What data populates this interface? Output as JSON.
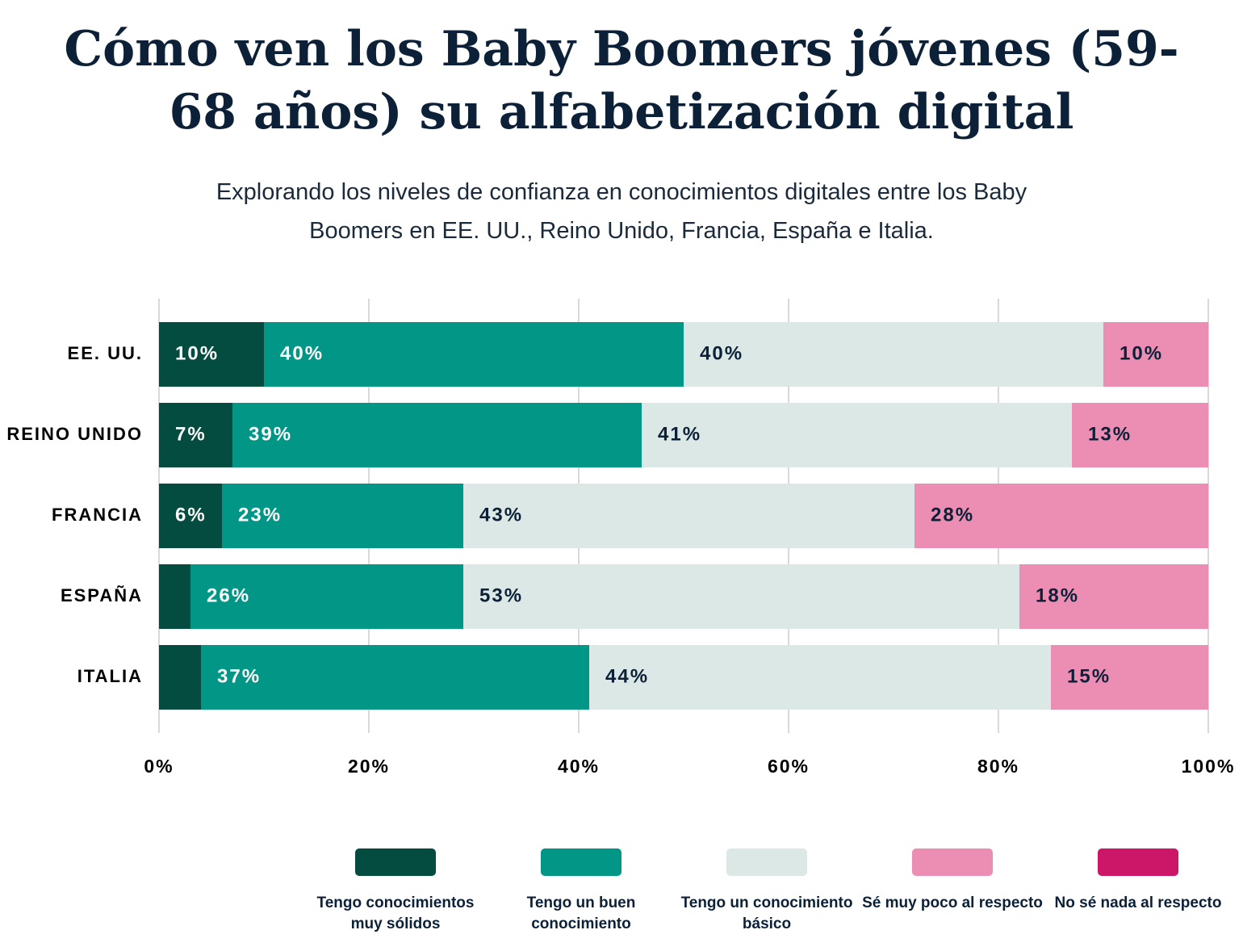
{
  "chart_data": {
    "type": "stacked-bar-horizontal",
    "title": "Cómo ven los Baby Boomers jóvenes (59-68 años) su alfabetización digital",
    "subtitle": "Explorando los niveles de confianza en conocimientos digitales entre los Baby Boomers en EE. UU., Reino Unido, Francia, España e Italia.",
    "categories": [
      "EE. UU.",
      "REINO UNIDO",
      "FRANCIA",
      "ESPAÑA",
      "ITALIA"
    ],
    "series": [
      {
        "name": "Tengo conocimientos muy sólidos",
        "color": "#034c3f",
        "values": [
          10,
          7,
          6,
          3,
          4
        ],
        "value_labels": [
          "10%",
          "7%",
          "6%",
          null,
          null
        ]
      },
      {
        "name": "Tengo un buen conocimiento",
        "color": "#019686",
        "values": [
          40,
          39,
          23,
          26,
          37
        ],
        "value_labels": [
          "40%",
          "39%",
          "23%",
          "26%",
          "37%"
        ]
      },
      {
        "name": "Tengo un conocimiento básico",
        "color": "#dbe8e6",
        "values": [
          40,
          41,
          43,
          53,
          44
        ],
        "value_labels": [
          "40%",
          "41%",
          "43%",
          "53%",
          "44%"
        ]
      },
      {
        "name": "Sé muy poco al respecto",
        "color": "#ec8db4",
        "values": [
          10,
          13,
          28,
          18,
          15
        ],
        "value_labels": [
          "10%",
          "13%",
          "28%",
          "18%",
          "15%"
        ]
      },
      {
        "name": "No sé nada al respecto",
        "color": "#cc1769",
        "values": [
          0,
          0,
          0,
          0,
          0
        ]
      }
    ],
    "xlim": [
      0,
      100
    ],
    "xticks": [
      {
        "value": 0,
        "label": "0%"
      },
      {
        "value": 20,
        "label": "20%"
      },
      {
        "value": 40,
        "label": "40%"
      },
      {
        "value": 60,
        "label": "60%"
      },
      {
        "value": 80,
        "label": "80%"
      },
      {
        "value": 100,
        "label": "100%"
      }
    ],
    "grid": true
  }
}
